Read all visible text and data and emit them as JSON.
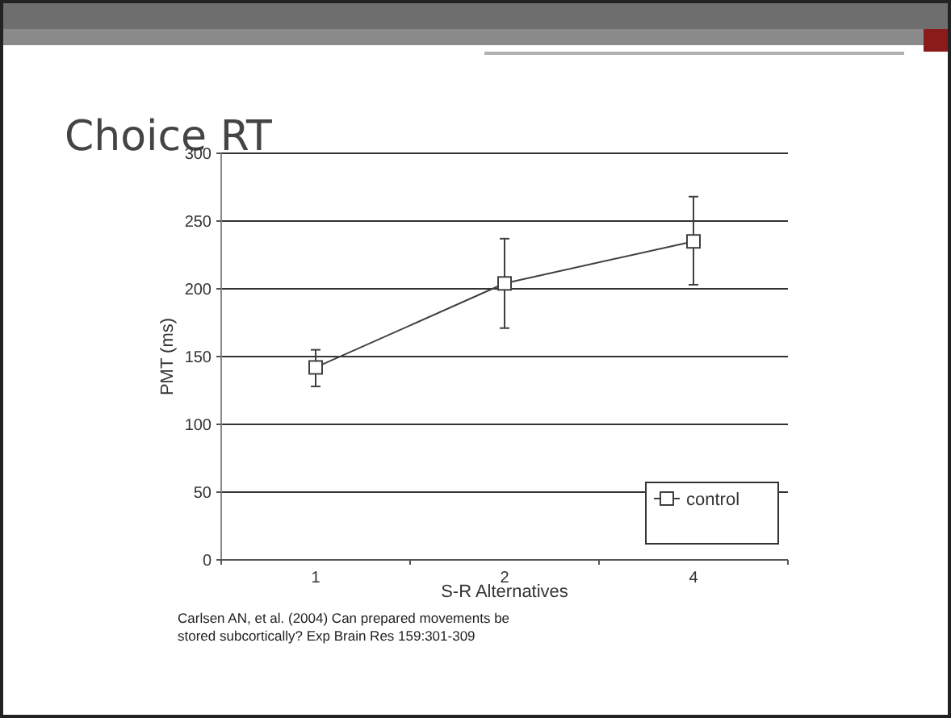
{
  "chart_data": {
    "type": "line",
    "title": "Choice RT",
    "xlabel": "S-R Alternatives",
    "ylabel": "PMT (ms)",
    "categories": [
      "1",
      "2",
      "4"
    ],
    "series": [
      {
        "name": "control",
        "color": "#404040",
        "values": [
          142,
          204,
          235
        ],
        "errors": [
          [
            128,
            155
          ],
          [
            171,
            237
          ],
          [
            203,
            268
          ]
        ]
      }
    ],
    "ylim": [
      0,
      300
    ],
    "yticks": [
      0,
      50,
      100,
      150,
      200,
      250,
      300
    ],
    "grid": "y",
    "legend": "bottom right",
    "marker": "square",
    "line_style": "solid",
    "annotations": [
      "Carlsen AN, et al. (2004) Can prepared movements be stored subcortically? Exp Brain Res 159:301-309"
    ]
  }
}
